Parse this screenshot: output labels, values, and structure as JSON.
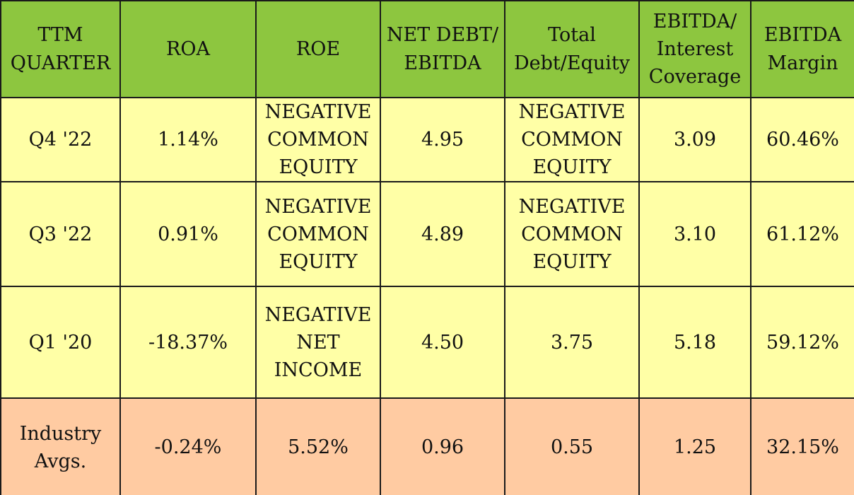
{
  "chart_data": {
    "type": "table",
    "columns": [
      "TTM\nQUARTER",
      "ROA",
      "ROE",
      "NET DEBT/\nEBITDA",
      "Total\nDebt/Equity",
      "EBITDA/\nInterest\nCoverage",
      "EBITDA\nMargin"
    ],
    "rows": [
      [
        "Q4 '22",
        "1.14%",
        "NEGATIVE\nCOMMON\nEQUITY",
        "4.95",
        "NEGATIVE\nCOMMON\nEQUITY",
        "3.09",
        "60.46%"
      ],
      [
        "Q3 '22",
        "0.91%",
        "NEGATIVE\nCOMMON\nEQUITY",
        "4.89",
        "NEGATIVE\nCOMMON\nEQUITY",
        "3.10",
        "61.12%"
      ],
      [
        "Q1 '20",
        "-18.37%",
        "NEGATIVE\nNET\nINCOME",
        "4.50",
        "3.75",
        "5.18",
        "59.12%"
      ]
    ],
    "industry_row": [
      "Industry\nAvgs.",
      "-0.24%",
      "5.52%",
      "0.96",
      "0.55",
      "1.25",
      "32.15%"
    ]
  },
  "colors": {
    "header_bg": "#8dc63f",
    "data_row_bg": "#ffffa6",
    "industry_row_bg": "#ffcba2",
    "border": "#1a1a1a"
  }
}
